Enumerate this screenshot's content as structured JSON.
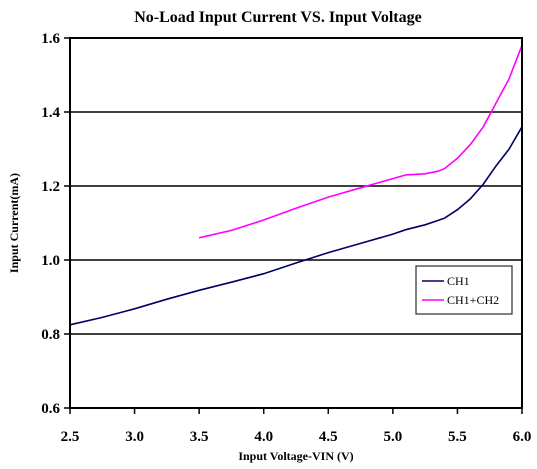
{
  "chart_data": {
    "type": "line",
    "title": "No-Load Input Current VS. Input Voltage",
    "xlabel": "Input Voltage-VIN (V)",
    "ylabel": "Input Current(mA)",
    "xlim": [
      2.5,
      6.0
    ],
    "ylim": [
      0.6,
      1.6
    ],
    "x_ticks": [
      "2.5",
      "3.0",
      "3.5",
      "4.0",
      "4.5",
      "5.0",
      "5.5",
      "6.0"
    ],
    "y_ticks": [
      "0.6",
      "0.8",
      "1.0",
      "1.2",
      "1.4",
      "1.6"
    ],
    "grid": true,
    "legend_position": "bottom-right",
    "series": [
      {
        "name": "CH1",
        "color": "#000066",
        "x": [
          2.5,
          2.75,
          3.0,
          3.25,
          3.5,
          3.75,
          4.0,
          4.25,
          4.5,
          4.75,
          5.0,
          5.1,
          5.25,
          5.4,
          5.5,
          5.6,
          5.7,
          5.8,
          5.9,
          6.0
        ],
        "y": [
          0.825,
          0.845,
          0.868,
          0.894,
          0.918,
          0.94,
          0.963,
          0.992,
          1.02,
          1.045,
          1.07,
          1.082,
          1.095,
          1.113,
          1.136,
          1.165,
          1.205,
          1.255,
          1.3,
          1.36
        ]
      },
      {
        "name": "CH1+CH2",
        "color": "#ff00ff",
        "x": [
          3.5,
          3.75,
          4.0,
          4.25,
          4.5,
          4.75,
          5.0,
          5.1,
          5.25,
          5.35,
          5.4,
          5.5,
          5.6,
          5.7,
          5.8,
          5.9,
          6.0
        ],
        "y": [
          1.06,
          1.08,
          1.108,
          1.14,
          1.17,
          1.195,
          1.22,
          1.23,
          1.233,
          1.24,
          1.247,
          1.275,
          1.312,
          1.36,
          1.425,
          1.49,
          1.58
        ]
      }
    ]
  }
}
